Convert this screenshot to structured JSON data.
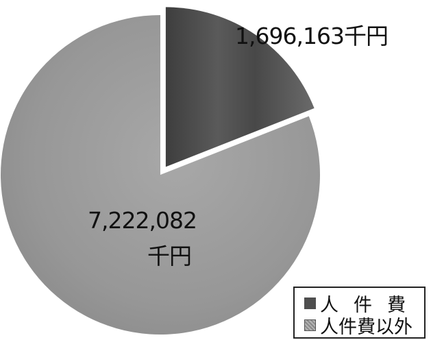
{
  "chart_data": {
    "type": "pie",
    "title": "",
    "unit": "千円",
    "slices": [
      {
        "name": "人件費",
        "value": 1696163,
        "value_label": "1,696,163千円",
        "exploded": true,
        "color": "#4e4e4e"
      },
      {
        "name": "人件費以外",
        "value": 7222082,
        "value_label_line1": "7,222,082",
        "value_label_line2": "千円",
        "exploded": false,
        "color": "#9a9a9a"
      }
    ],
    "start_angle_deg": 0,
    "direction": "clockwise",
    "legend_position": "bottom-right"
  },
  "legend": {
    "items": [
      {
        "label": "人件費"
      },
      {
        "label": "人件費以外"
      }
    ]
  }
}
